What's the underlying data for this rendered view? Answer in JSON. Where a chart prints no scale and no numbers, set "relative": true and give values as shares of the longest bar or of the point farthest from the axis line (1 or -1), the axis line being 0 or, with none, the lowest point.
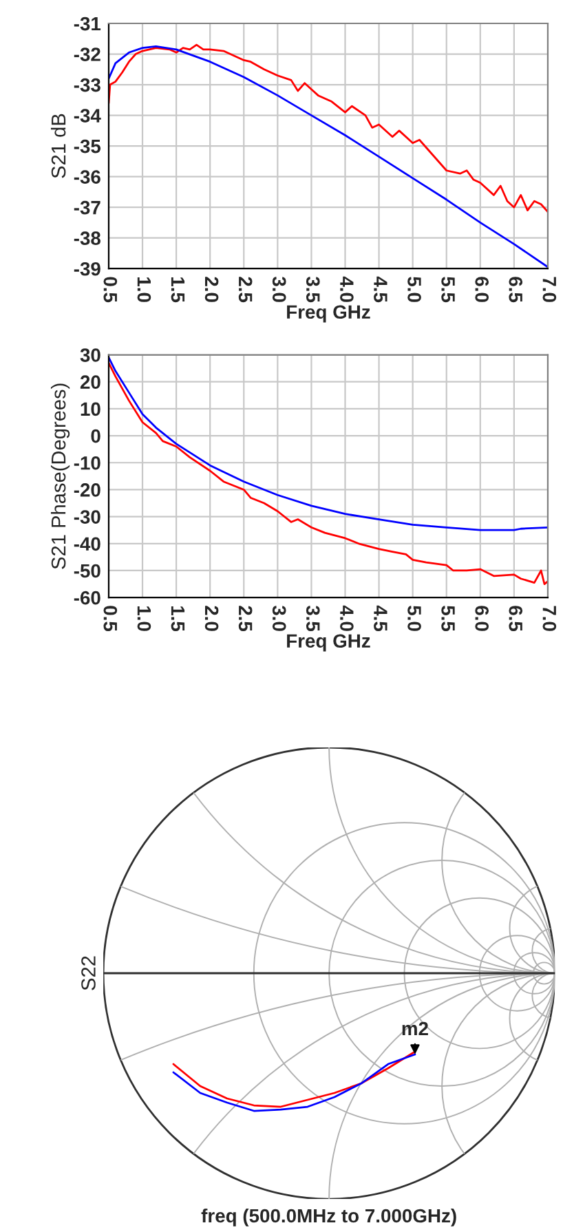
{
  "chart_data": [
    {
      "type": "line",
      "xlabel": "Freq GHz",
      "ylabel": "S21 dB",
      "xlim": [
        0.5,
        7.0
      ],
      "ylim": [
        -39,
        -31
      ],
      "grid": true,
      "xticks": [
        {
          "value": 0.5,
          "label": "0.5"
        },
        {
          "value": 1.0,
          "label": "1.0"
        },
        {
          "value": 1.5,
          "label": "1.5"
        },
        {
          "value": 2.0,
          "label": "2.0"
        },
        {
          "value": 2.5,
          "label": "2.5"
        },
        {
          "value": 3.0,
          "label": "3.0"
        },
        {
          "value": 3.5,
          "label": "3.5"
        },
        {
          "value": 4.0,
          "label": "4.0"
        },
        {
          "value": 4.5,
          "label": "4.5"
        },
        {
          "value": 5.0,
          "label": "5.0"
        },
        {
          "value": 5.5,
          "label": "5.5"
        },
        {
          "value": 6.0,
          "label": "6.0"
        },
        {
          "value": 6.5,
          "label": "6.5"
        },
        {
          "value": 7.0,
          "label": "7.0"
        }
      ],
      "yticks": [
        -39,
        -38,
        -37,
        -36,
        -35,
        -34,
        -33,
        -32,
        -31
      ],
      "series": [
        {
          "color": "#ff0000",
          "x": [
            0.5,
            0.52,
            0.6,
            0.7,
            0.8,
            0.9,
            1.0,
            1.2,
            1.4,
            1.5,
            1.6,
            1.7,
            1.8,
            1.9,
            2.0,
            2.2,
            2.4,
            2.5,
            2.6,
            2.8,
            3.0,
            3.2,
            3.3,
            3.4,
            3.5,
            3.6,
            3.8,
            4.0,
            4.1,
            4.3,
            4.4,
            4.5,
            4.7,
            4.8,
            5.0,
            5.1,
            5.3,
            5.5,
            5.7,
            5.8,
            5.9,
            6.0,
            6.2,
            6.3,
            6.4,
            6.5,
            6.6,
            6.7,
            6.8,
            6.9,
            7.0
          ],
          "values": [
            -33.6,
            -33.0,
            -32.9,
            -32.6,
            -32.25,
            -32.0,
            -31.9,
            -31.8,
            -31.85,
            -31.95,
            -31.8,
            -31.85,
            -31.7,
            -31.85,
            -31.85,
            -31.9,
            -32.1,
            -32.2,
            -32.25,
            -32.5,
            -32.7,
            -32.85,
            -33.2,
            -32.95,
            -33.15,
            -33.35,
            -33.55,
            -33.9,
            -33.7,
            -34.0,
            -34.4,
            -34.3,
            -34.7,
            -34.5,
            -34.9,
            -34.8,
            -35.3,
            -35.8,
            -35.9,
            -35.8,
            -36.1,
            -36.2,
            -36.6,
            -36.3,
            -36.8,
            -37.0,
            -36.6,
            -37.1,
            -36.8,
            -36.9,
            -37.15
          ]
        },
        {
          "color": "#0000ff",
          "x": [
            0.5,
            0.6,
            0.8,
            1.0,
            1.2,
            1.5,
            2.0,
            2.5,
            3.0,
            3.5,
            4.0,
            4.5,
            5.0,
            5.5,
            6.0,
            6.5,
            7.0
          ],
          "values": [
            -32.8,
            -32.3,
            -31.95,
            -31.8,
            -31.75,
            -31.85,
            -32.25,
            -32.75,
            -33.35,
            -34.0,
            -34.65,
            -35.35,
            -36.05,
            -36.75,
            -37.5,
            -38.2,
            -38.95
          ]
        }
      ]
    },
    {
      "type": "line",
      "xlabel": "Freq GHz",
      "ylabel": "S21 Phase(Degrees)",
      "xlim": [
        0.5,
        7.0
      ],
      "ylim": [
        -60,
        30
      ],
      "grid": true,
      "xticks": [
        {
          "value": 0.5,
          "label": "0.5"
        },
        {
          "value": 1.0,
          "label": "1.0"
        },
        {
          "value": 1.5,
          "label": "1.5"
        },
        {
          "value": 2.0,
          "label": "2.0"
        },
        {
          "value": 2.5,
          "label": "2.5"
        },
        {
          "value": 3.0,
          "label": "3.0"
        },
        {
          "value": 3.5,
          "label": "3.5"
        },
        {
          "value": 4.0,
          "label": "4.0"
        },
        {
          "value": 4.5,
          "label": "4.5"
        },
        {
          "value": 5.0,
          "label": "5.0"
        },
        {
          "value": 5.5,
          "label": "5.5"
        },
        {
          "value": 6.0,
          "label": "6.0"
        },
        {
          "value": 6.5,
          "label": "6.5"
        },
        {
          "value": 7.0,
          "label": "7.0"
        }
      ],
      "yticks": [
        -60,
        -50,
        -40,
        -30,
        -20,
        -10,
        0,
        10,
        20,
        30
      ],
      "series": [
        {
          "color": "#ff0000",
          "x": [
            0.5,
            0.6,
            0.8,
            1.0,
            1.2,
            1.3,
            1.5,
            1.7,
            2.0,
            2.2,
            2.5,
            2.6,
            2.8,
            3.0,
            3.2,
            3.3,
            3.5,
            3.7,
            4.0,
            4.2,
            4.5,
            4.7,
            4.9,
            5.0,
            5.2,
            5.5,
            5.6,
            5.8,
            6.0,
            6.2,
            6.5,
            6.6,
            6.8,
            6.9,
            6.95,
            7.0
          ],
          "values": [
            27,
            22,
            13,
            5,
            1,
            -2,
            -4,
            -8,
            -13,
            -17,
            -20,
            -23,
            -25,
            -28,
            -32,
            -31,
            -34,
            -36,
            -38,
            -40,
            -42,
            -43,
            -44,
            -46,
            -47,
            -48,
            -50,
            -50,
            -49.5,
            -52,
            -51.5,
            -53,
            -54.5,
            -50,
            -55,
            -54
          ]
        },
        {
          "color": "#0000ff",
          "x": [
            0.5,
            0.6,
            0.8,
            1.0,
            1.2,
            1.5,
            2.0,
            2.5,
            3.0,
            3.5,
            4.0,
            4.5,
            5.0,
            5.5,
            6.0,
            6.5,
            6.6,
            7.0
          ],
          "values": [
            29,
            24,
            16,
            8,
            3,
            -3,
            -11,
            -17,
            -22,
            -26,
            -29,
            -31,
            -33,
            -34,
            -35,
            -35,
            -34.5,
            -34
          ]
        }
      ]
    },
    {
      "type": "line",
      "xlabel": "freq (500.0MHz to 7.000GHz)",
      "ylabel": "S22",
      "relative": true,
      "categories": [
        null,
        null,
        null,
        null,
        null,
        null,
        null,
        null,
        null,
        null
      ],
      "annotations": [
        "m2"
      ],
      "series": [
        {
          "color": "#ff0000",
          "values": [
            -0.66,
            -0.82,
            -0.91,
            -0.96,
            -0.97,
            -0.92,
            -0.87,
            -0.8,
            -0.69,
            -0.57
          ]
        },
        {
          "color": "#0000ff",
          "values": [
            -0.72,
            -0.87,
            -0.94,
            -1,
            -0.99,
            -0.97,
            -0.9,
            -0.8,
            -0.66,
            -0.59
          ]
        }
      ]
    }
  ]
}
